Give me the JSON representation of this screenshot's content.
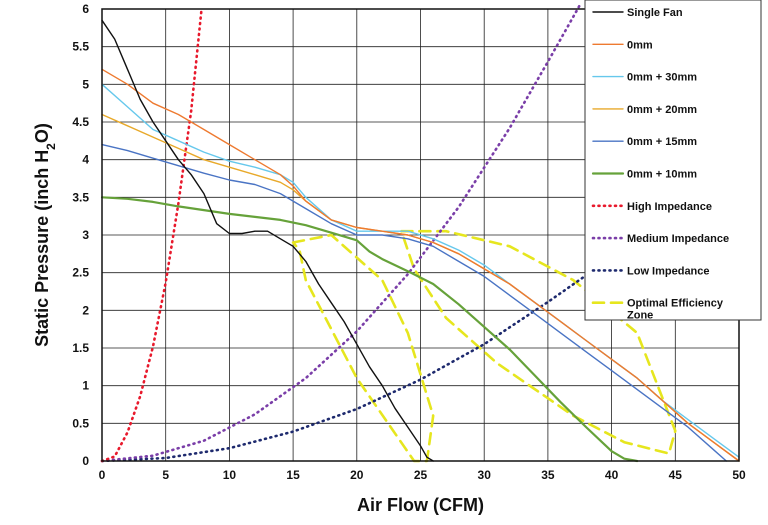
{
  "chart_data": {
    "type": "line",
    "title": "",
    "xlabel": "Air Flow (CFM)",
    "ylabel": "Static Pressure (inch H2O)",
    "ylabel_parts": {
      "main": "Static Pressure (inch H",
      "sub": "2",
      "tail": "O)"
    },
    "xlim": [
      0,
      50
    ],
    "ylim": [
      0,
      6
    ],
    "xticks": [
      0,
      5,
      10,
      15,
      20,
      25,
      30,
      35,
      40,
      45,
      50
    ],
    "yticks": [
      0,
      0.5,
      1,
      1.5,
      2,
      2.5,
      3,
      3.5,
      4,
      4.5,
      5,
      5.5,
      6
    ],
    "ytick_labels": [
      "0",
      "0.5",
      "1",
      "1.5",
      "2",
      "2.5",
      "3",
      "3.5",
      "4",
      "4.5",
      "5",
      "5.5",
      "6"
    ],
    "grid": true,
    "legend_position": "top-right",
    "series": [
      {
        "name": "Single Fan",
        "color": "#111111",
        "style": "solid",
        "width": 1.4,
        "x": [
          0,
          1,
          2,
          3,
          4,
          5,
          6,
          7,
          8,
          9,
          10,
          11,
          12,
          13,
          14,
          15,
          16,
          17,
          18,
          19,
          20,
          21,
          22,
          23,
          24,
          25,
          25.5,
          26
        ],
        "y": [
          5.85,
          5.6,
          5.2,
          4.8,
          4.5,
          4.25,
          4.0,
          3.8,
          3.55,
          3.15,
          3.02,
          3.02,
          3.05,
          3.05,
          2.95,
          2.85,
          2.65,
          2.35,
          2.1,
          1.85,
          1.55,
          1.25,
          1.0,
          0.7,
          0.45,
          0.2,
          0.05,
          0
        ]
      },
      {
        "name": "0mm",
        "color": "#ee7a30",
        "style": "solid",
        "width": 1.4,
        "x": [
          0,
          2,
          4,
          6,
          8,
          10,
          12,
          14,
          15,
          16,
          18,
          20,
          22,
          24,
          26,
          28,
          30,
          32,
          34,
          36,
          38,
          40,
          42,
          44,
          46,
          48,
          50
        ],
        "y": [
          5.2,
          5.0,
          4.75,
          4.6,
          4.4,
          4.2,
          4.0,
          3.8,
          3.65,
          3.45,
          3.2,
          3.1,
          3.05,
          3.0,
          2.9,
          2.75,
          2.55,
          2.35,
          2.1,
          1.85,
          1.6,
          1.35,
          1.1,
          0.8,
          0.5,
          0.25,
          0
        ]
      },
      {
        "name": "0mm + 30mm",
        "color": "#66c8ec",
        "style": "solid",
        "width": 1.4,
        "x": [
          0,
          2,
          4,
          6,
          8,
          10,
          12,
          14,
          15,
          16,
          18,
          20,
          22,
          24,
          26,
          28,
          30,
          32,
          34,
          36,
          38,
          40,
          42,
          44,
          46,
          48,
          50
        ],
        "y": [
          5.0,
          4.7,
          4.4,
          4.25,
          4.1,
          3.98,
          3.9,
          3.8,
          3.7,
          3.5,
          3.2,
          3.05,
          3.05,
          3.05,
          2.95,
          2.8,
          2.6,
          2.35,
          2.1,
          1.85,
          1.6,
          1.35,
          1.1,
          0.8,
          0.55,
          0.3,
          0.05
        ]
      },
      {
        "name": "0mm + 20mm",
        "color": "#e8a92a",
        "style": "solid",
        "width": 1.4,
        "x": [
          0,
          2,
          4,
          6,
          8,
          10,
          12,
          14,
          15,
          16,
          18,
          20,
          22,
          24,
          26,
          28,
          30,
          32,
          34,
          36,
          38,
          40,
          42,
          44,
          46,
          48,
          50
        ],
        "y": [
          4.6,
          4.45,
          4.3,
          4.15,
          4.0,
          3.9,
          3.8,
          3.7,
          3.6,
          3.45,
          3.2,
          3.1,
          3.05,
          3.0,
          2.9,
          2.75,
          2.55,
          2.35,
          2.1,
          1.85,
          1.6,
          1.35,
          1.1,
          0.8,
          0.5,
          0.25,
          0
        ]
      },
      {
        "name": "0mm + 15mm",
        "color": "#4a74c4",
        "style": "solid",
        "width": 1.4,
        "x": [
          0,
          2,
          4,
          6,
          8,
          10,
          12,
          14,
          15,
          16,
          18,
          20,
          22,
          24,
          26,
          28,
          30,
          32,
          34,
          36,
          38,
          40,
          42,
          44,
          46,
          48,
          49
        ],
        "y": [
          4.2,
          4.12,
          4.02,
          3.92,
          3.82,
          3.73,
          3.67,
          3.55,
          3.45,
          3.35,
          3.15,
          3.0,
          3.0,
          2.95,
          2.85,
          2.65,
          2.45,
          2.2,
          1.95,
          1.7,
          1.45,
          1.2,
          0.95,
          0.7,
          0.45,
          0.15,
          0
        ]
      },
      {
        "name": "0mm + 10mm",
        "color": "#66a23a",
        "style": "solid",
        "width": 2.2,
        "x": [
          0,
          2,
          4,
          6,
          8,
          10,
          12,
          14,
          16,
          18,
          20,
          21,
          22,
          24,
          26,
          28,
          30,
          32,
          34,
          36,
          38,
          40,
          41,
          42
        ],
        "y": [
          3.5,
          3.48,
          3.44,
          3.38,
          3.33,
          3.28,
          3.24,
          3.2,
          3.13,
          3.03,
          2.93,
          2.78,
          2.68,
          2.52,
          2.35,
          2.08,
          1.78,
          1.48,
          1.13,
          0.78,
          0.45,
          0.13,
          0.03,
          0
        ]
      },
      {
        "name": "High Impedance",
        "color": "#e8192c",
        "style": "dotted",
        "width": 2.6,
        "x": [
          0,
          1,
          2,
          3,
          4,
          5,
          6,
          7,
          7.8
        ],
        "y": [
          0,
          0.06,
          0.38,
          0.86,
          1.52,
          2.37,
          3.42,
          4.65,
          5.98
        ]
      },
      {
        "name": "Medium Impedance",
        "color": "#7a3ea8",
        "style": "dotted",
        "width": 2.6,
        "x": [
          0,
          4,
          8,
          12,
          16,
          20,
          24,
          28,
          32,
          35,
          37.5
        ],
        "y": [
          0,
          0.07,
          0.27,
          0.62,
          1.1,
          1.72,
          2.48,
          3.37,
          4.42,
          5.3,
          6.05
        ]
      },
      {
        "name": "Low Impedance",
        "color": "#1e2a6e",
        "style": "dotted",
        "width": 2.6,
        "x": [
          0,
          5,
          10,
          15,
          20,
          25,
          30,
          35,
          38.3
        ],
        "y": [
          0,
          0.04,
          0.17,
          0.39,
          0.69,
          1.08,
          1.55,
          2.11,
          2.5
        ]
      },
      {
        "name": "Optimal Efficiency Zone",
        "color": "#e6e61e",
        "style": "dashed",
        "width": 2.6,
        "outlines": [
          {
            "x": [
              15,
              18,
              22,
              24,
              26,
              25.5,
              24.5,
              20,
              16,
              15.5,
              15
            ],
            "y": [
              2.9,
              3.0,
              2.4,
              1.7,
              0.6,
              0,
              0,
              1.1,
              2.4,
              2.8,
              2.9
            ]
          },
          {
            "x": [
              23.5,
              27,
              32,
              37,
              42,
              45,
              44.5,
              41,
              37,
              31,
              27,
              24.5,
              23.5
            ],
            "y": [
              3.05,
              3.05,
              2.85,
              2.4,
              1.7,
              0.4,
              0.1,
              0.25,
              0.6,
              1.3,
              1.9,
              2.55,
              3.05
            ]
          }
        ]
      }
    ]
  }
}
